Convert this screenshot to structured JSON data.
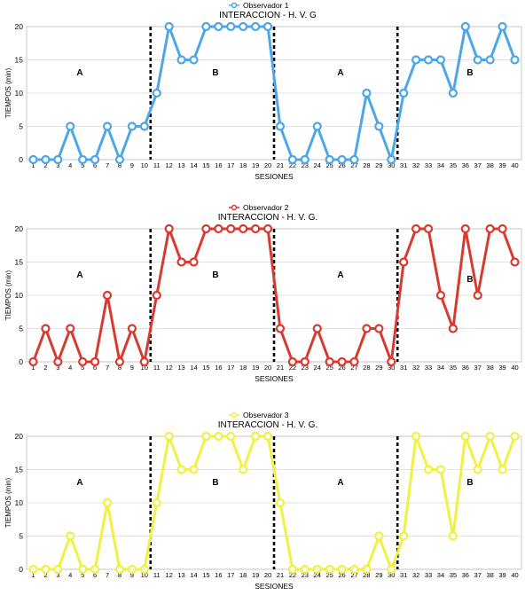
{
  "chart_data": [
    {
      "type": "line",
      "legend": "Observador 1",
      "title": "INTERACCION -  H. V. G",
      "xlabel": "SESIONES",
      "ylabel": "TIEMPOS (min)",
      "color": "#4da6e8",
      "ylim": [
        0,
        20
      ],
      "yticks": [
        0,
        5,
        10,
        15,
        20
      ],
      "x": [
        1,
        2,
        3,
        4,
        5,
        6,
        7,
        8,
        9,
        10,
        11,
        12,
        13,
        14,
        15,
        16,
        17,
        18,
        19,
        20,
        21,
        22,
        23,
        24,
        25,
        26,
        27,
        28,
        29,
        30,
        31,
        32,
        33,
        34,
        35,
        36,
        37,
        38,
        39,
        40
      ],
      "values": [
        0,
        0,
        0,
        5,
        0,
        0,
        5,
        0,
        5,
        5,
        10,
        20,
        15,
        15,
        20,
        20,
        20,
        20,
        20,
        20,
        5,
        0,
        0,
        5,
        0,
        0,
        0,
        10,
        5,
        0,
        10,
        15,
        15,
        15,
        10,
        20,
        15,
        15,
        20,
        15
      ],
      "phase_lines_after": [
        10,
        20,
        30
      ],
      "phase_labels": [
        "A",
        "B",
        "A",
        "B"
      ]
    },
    {
      "type": "line",
      "legend": "Observador 2",
      "title": "INTERACCION -  H. V. G.",
      "xlabel": "SESIONES",
      "ylabel": "TIEMPOS (min)",
      "color": "#d93a30",
      "ylim": [
        0,
        20
      ],
      "yticks": [
        0,
        5,
        10,
        15,
        20
      ],
      "x": [
        1,
        2,
        3,
        4,
        5,
        6,
        7,
        8,
        9,
        10,
        11,
        12,
        13,
        14,
        15,
        16,
        17,
        18,
        19,
        20,
        21,
        22,
        23,
        24,
        25,
        26,
        27,
        28,
        29,
        30,
        31,
        32,
        33,
        34,
        35,
        36,
        37,
        38,
        39,
        40
      ],
      "values": [
        0,
        5,
        0,
        5,
        0,
        0,
        10,
        0,
        5,
        0,
        10,
        20,
        15,
        15,
        20,
        20,
        20,
        20,
        20,
        20,
        5,
        0,
        0,
        5,
        0,
        0,
        0,
        5,
        5,
        0,
        15,
        20,
        20,
        10,
        5,
        20,
        10,
        20,
        20,
        15
      ],
      "phase_lines_after": [
        10,
        20,
        30
      ],
      "phase_labels": [
        "A",
        "B",
        "A",
        "B"
      ]
    },
    {
      "type": "line",
      "legend": "Observador 3",
      "title": "INTERACCION -  H. V. G.",
      "xlabel": "SESIONES",
      "ylabel": "TIEMPOS (min)",
      "color": "#f2f040",
      "ylim": [
        0,
        20
      ],
      "yticks": [
        0,
        5,
        10,
        15,
        20
      ],
      "x": [
        1,
        2,
        3,
        4,
        5,
        6,
        7,
        8,
        9,
        10,
        11,
        12,
        13,
        14,
        15,
        16,
        17,
        18,
        19,
        20,
        21,
        22,
        23,
        24,
        25,
        26,
        27,
        28,
        29,
        30,
        31,
        32,
        33,
        34,
        35,
        36,
        37,
        38,
        39,
        40
      ],
      "values": [
        0,
        0,
        0,
        5,
        0,
        0,
        10,
        0,
        0,
        0,
        10,
        20,
        15,
        15,
        20,
        20,
        20,
        15,
        20,
        20,
        10,
        0,
        0,
        0,
        0,
        0,
        0,
        0,
        5,
        0,
        5,
        20,
        15,
        15,
        5,
        20,
        15,
        20,
        15,
        20
      ],
      "phase_lines_after": [
        10,
        20,
        30
      ],
      "phase_labels": [
        "A",
        "B",
        "A",
        "B"
      ]
    }
  ]
}
